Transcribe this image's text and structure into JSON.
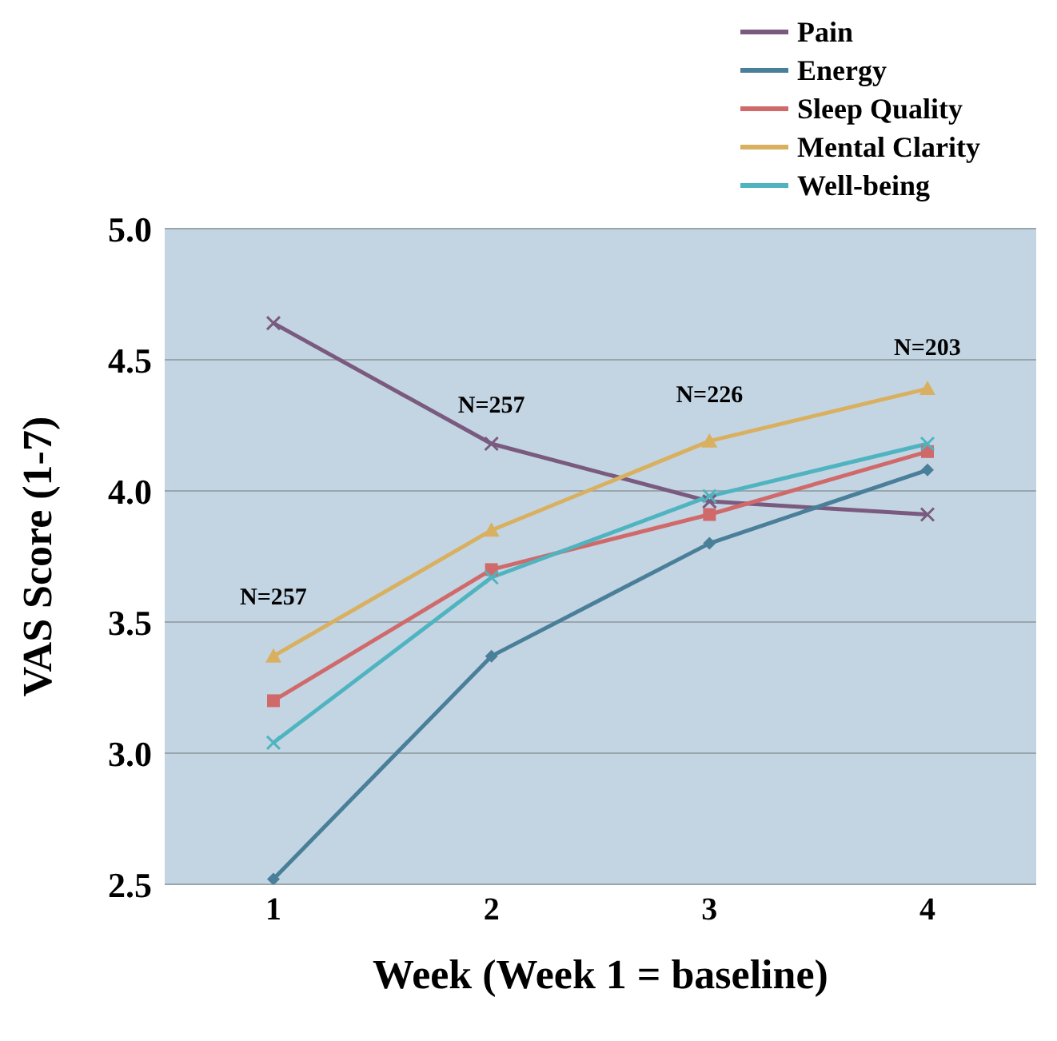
{
  "chart_data": {
    "type": "line",
    "xlabel": "Week (Week 1 = baseline)",
    "ylabel": "VAS Score (1-7)",
    "categories": [
      "1",
      "2",
      "3",
      "4"
    ],
    "series": [
      {
        "name": "Pain",
        "color": "#7a5a7e",
        "marker": "cross",
        "values": [
          4.64,
          4.18,
          3.96,
          3.91
        ]
      },
      {
        "name": "Energy",
        "color": "#4a7f99",
        "marker": "diamond",
        "values": [
          2.52,
          3.37,
          3.8,
          4.08
        ]
      },
      {
        "name": "Sleep Quality",
        "color": "#d06a6a",
        "marker": "square",
        "values": [
          3.2,
          3.7,
          3.91,
          4.15
        ]
      },
      {
        "name": "Mental Clarity",
        "color": "#d9b060",
        "marker": "triangle",
        "values": [
          3.37,
          3.85,
          4.19,
          4.39
        ]
      },
      {
        "name": "Well-being",
        "color": "#4fb4c0",
        "marker": "cross",
        "values": [
          3.04,
          3.67,
          3.98,
          4.18
        ]
      }
    ],
    "ylim": [
      2.5,
      5.0
    ],
    "yticks": [
      {
        "value": 2.5,
        "label": "2.5"
      },
      {
        "value": 3.0,
        "label": "3.0"
      },
      {
        "value": 3.5,
        "label": "3.5"
      },
      {
        "value": 4.0,
        "label": "4.0"
      },
      {
        "value": 4.5,
        "label": "4.5"
      },
      {
        "value": 5.0,
        "label": "5.0"
      }
    ],
    "grid": "y",
    "legend": "top right",
    "line_style": "solid",
    "annotations": [
      "N=257",
      "N=257",
      "N=226",
      "N=203"
    ]
  }
}
